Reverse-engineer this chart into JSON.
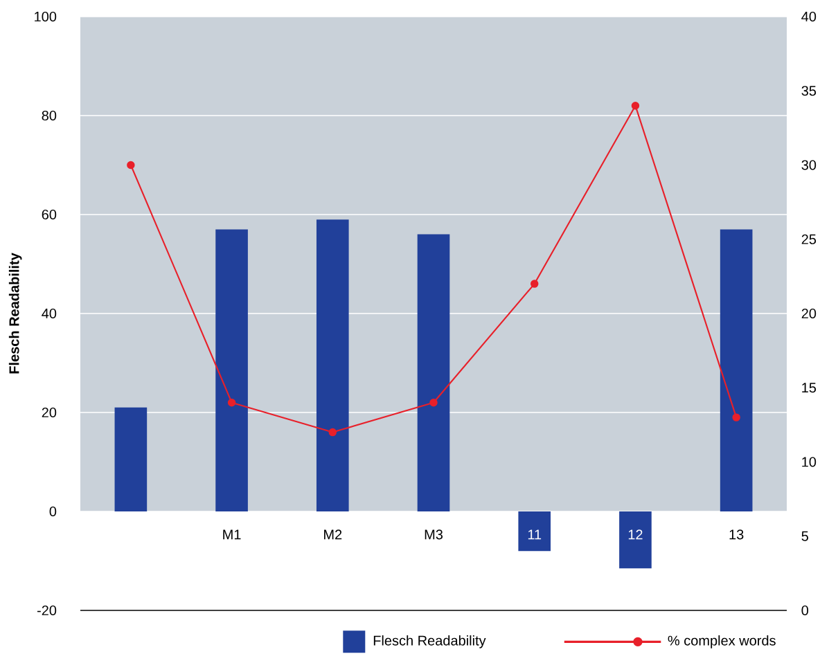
{
  "chart_data": {
    "type": "bar",
    "ylabel": "Flesch Readability",
    "categories": [
      null,
      "M1",
      "M2",
      "M3",
      "11",
      "12",
      "13"
    ],
    "series": [
      {
        "name": "Flesch Readability",
        "color": "#21409a",
        "values": [
          21,
          57,
          59,
          56,
          -8,
          -11.5,
          57
        ]
      },
      {
        "name": "% complex words",
        "type": "line",
        "axis": "y2",
        "color": "#e8202a",
        "marker": "circle",
        "values": [
          30,
          14,
          12,
          14,
          22,
          34,
          13
        ]
      }
    ],
    "ylim": [
      -20,
      100
    ],
    "yticks": [
      -20,
      0,
      20,
      40,
      60,
      80,
      100
    ],
    "y2lim": [
      0,
      40
    ],
    "y2ticks": [
      0,
      5,
      10,
      15,
      20,
      25,
      30,
      35,
      40
    ],
    "bands": [
      {
        "axis": "y",
        "from": 0,
        "to": 100,
        "color": "#c9d1d9"
      }
    ],
    "grid": "y",
    "legend": "bottom"
  }
}
